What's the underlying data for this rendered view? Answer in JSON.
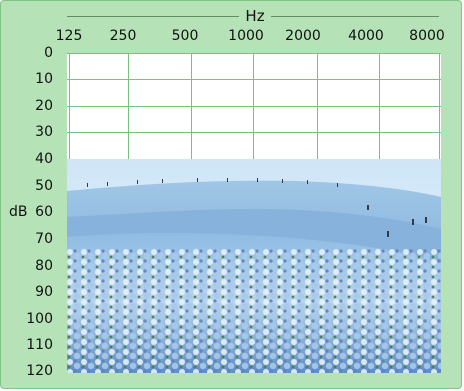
{
  "x_axis": {
    "label": "Hz",
    "ticks": [
      "125",
      "250",
      "500",
      "1000",
      "2000",
      "4000",
      "8000"
    ]
  },
  "y_axis": {
    "label": "dB",
    "ticks": [
      "0",
      "10",
      "20",
      "30",
      "40",
      "50",
      "60",
      "70",
      "80",
      "90",
      "100",
      "110",
      "120"
    ]
  },
  "colors": {
    "panel": "#b6e2b7",
    "border": "#7fc586",
    "grid": "#79c27f",
    "plot_background": "#ffffff"
  },
  "image": {
    "description_icon": "flower-field-photo-icon",
    "top_db": 40
  }
}
